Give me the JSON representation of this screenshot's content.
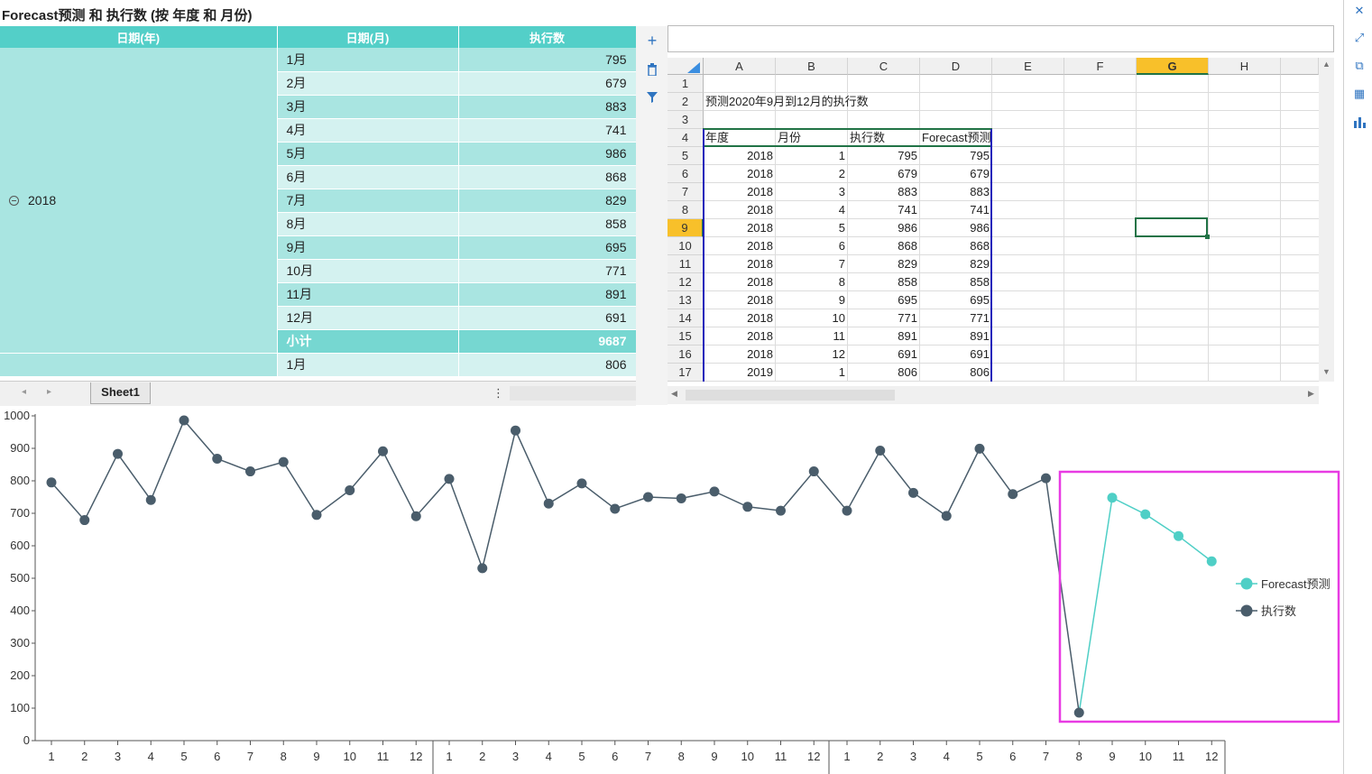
{
  "title": "Forecast预测 和 执行数 (按 年度 和 月份)",
  "pivot": {
    "headers": [
      "日期(年)",
      "日期(月)",
      "执行数"
    ],
    "year": "2018",
    "rows": [
      {
        "month": "1月",
        "value": "795"
      },
      {
        "month": "2月",
        "value": "679"
      },
      {
        "month": "3月",
        "value": "883"
      },
      {
        "month": "4月",
        "value": "741"
      },
      {
        "month": "5月",
        "value": "986"
      },
      {
        "month": "6月",
        "value": "868"
      },
      {
        "month": "7月",
        "value": "829"
      },
      {
        "month": "8月",
        "value": "858"
      },
      {
        "month": "9月",
        "value": "695"
      },
      {
        "month": "10月",
        "value": "771"
      },
      {
        "month": "11月",
        "value": "891"
      },
      {
        "month": "12月",
        "value": "691"
      }
    ],
    "subtotal_label": "小计",
    "subtotal_value": "9687",
    "next_row": {
      "month": "1月",
      "value": "806"
    }
  },
  "sheet_tab": "Sheet1",
  "spreadsheet": {
    "columns": [
      "A",
      "B",
      "C",
      "D",
      "E",
      "F",
      "G",
      "H"
    ],
    "selected_column": "G",
    "selected_row": "9",
    "rows": [
      "1",
      "2",
      "3",
      "4",
      "5",
      "6",
      "7",
      "8",
      "9",
      "10",
      "11",
      "12",
      "13",
      "14",
      "15",
      "16",
      "17"
    ],
    "note": "预测2020年9月到12月的执行数",
    "table_headers": [
      "年度",
      "月份",
      "执行数",
      "Forecast预测"
    ],
    "table_rows": [
      [
        "2018",
        "1",
        "795",
        "795"
      ],
      [
        "2018",
        "2",
        "679",
        "679"
      ],
      [
        "2018",
        "3",
        "883",
        "883"
      ],
      [
        "2018",
        "4",
        "741",
        "741"
      ],
      [
        "2018",
        "5",
        "986",
        "986"
      ],
      [
        "2018",
        "6",
        "868",
        "868"
      ],
      [
        "2018",
        "7",
        "829",
        "829"
      ],
      [
        "2018",
        "8",
        "858",
        "858"
      ],
      [
        "2018",
        "9",
        "695",
        "695"
      ],
      [
        "2018",
        "10",
        "771",
        "771"
      ],
      [
        "2018",
        "11",
        "891",
        "891"
      ],
      [
        "2018",
        "12",
        "691",
        "691"
      ],
      [
        "2019",
        "1",
        "806",
        "806"
      ]
    ]
  },
  "colors": {
    "teal": "#4fcfc6",
    "dark": "#4a5d6b",
    "highlight": "#e83be3"
  },
  "chart_data": {
    "type": "line",
    "ylim": [
      0,
      1000
    ],
    "yticks": [
      "0",
      "100",
      "200",
      "300",
      "400",
      "500",
      "600",
      "700",
      "800",
      "900",
      "1000"
    ],
    "categories": [
      "1",
      "2",
      "3",
      "4",
      "5",
      "6",
      "7",
      "8",
      "9",
      "10",
      "11",
      "12",
      "1",
      "2",
      "3",
      "4",
      "5",
      "6",
      "7",
      "8",
      "9",
      "10",
      "11",
      "12",
      "1",
      "2",
      "3",
      "4",
      "5",
      "6",
      "7",
      "8",
      "9",
      "10",
      "11",
      "12"
    ],
    "series": [
      {
        "name": "执行数",
        "color": "#4a5d6b",
        "values": [
          795,
          679,
          883,
          741,
          986,
          868,
          829,
          858,
          695,
          771,
          891,
          691,
          806,
          531,
          955,
          730,
          792,
          714,
          750,
          746,
          767,
          720,
          708,
          829,
          708,
          893,
          763,
          692,
          899,
          759,
          808,
          86,
          null,
          null,
          null,
          null
        ]
      },
      {
        "name": "Forecast预测",
        "color": "#4fcfc6",
        "values": [
          null,
          null,
          null,
          null,
          null,
          null,
          null,
          null,
          null,
          null,
          null,
          null,
          null,
          null,
          null,
          null,
          null,
          null,
          null,
          null,
          null,
          null,
          null,
          null,
          null,
          null,
          null,
          null,
          null,
          null,
          null,
          86,
          748,
          697,
          630,
          552
        ]
      }
    ],
    "legend": [
      "Forecast预测",
      "执行数"
    ]
  }
}
